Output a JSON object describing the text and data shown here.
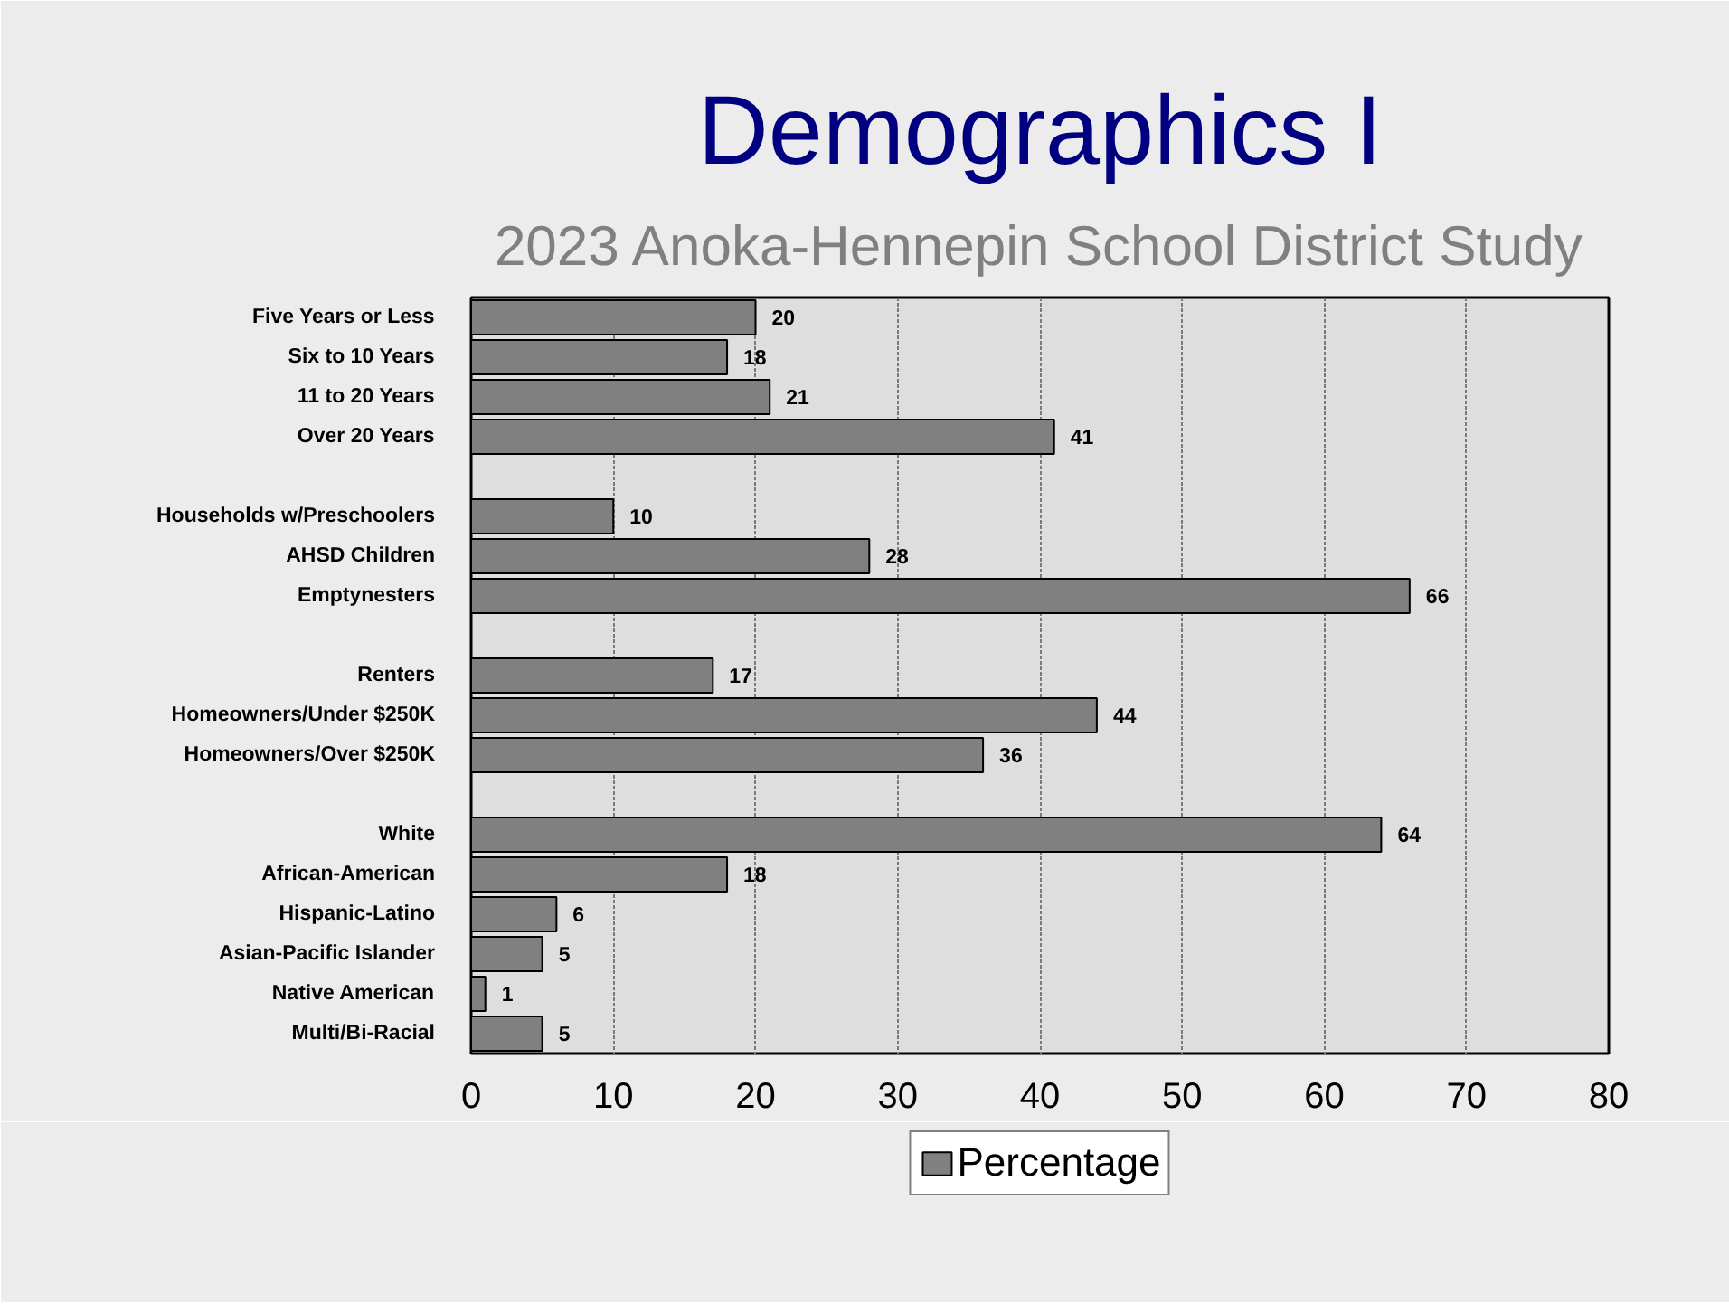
{
  "chart_data": {
    "type": "bar",
    "orientation": "horizontal",
    "title": "Demographics I",
    "subtitle": "2023 Anoka-Hennepin School District Study",
    "categories": [
      "Five Years or Less",
      "Six to 10 Years",
      "11 to 20 Years",
      "Over 20 Years",
      null,
      "Households w/Preschoolers",
      "AHSD Children",
      "Emptynesters",
      null,
      "Renters",
      "Homeowners/Under $250K",
      "Homeowners/Over $250K",
      null,
      "White",
      "African-American",
      "Hispanic-Latino",
      "Asian-Pacific Islander",
      "Native American",
      "Multi/Bi-Racial"
    ],
    "series": [
      {
        "name": "Percentage",
        "color": "#808080",
        "values": [
          20,
          18,
          21,
          41,
          null,
          10,
          28,
          66,
          null,
          17,
          44,
          36,
          null,
          64,
          18,
          6,
          5,
          1,
          5
        ]
      }
    ],
    "xlim": [
      0,
      80
    ],
    "xticks": [
      0,
      10,
      20,
      30,
      40,
      50,
      60,
      70,
      80
    ],
    "grid": "x",
    "legend": "bottom",
    "data_labels": true
  }
}
